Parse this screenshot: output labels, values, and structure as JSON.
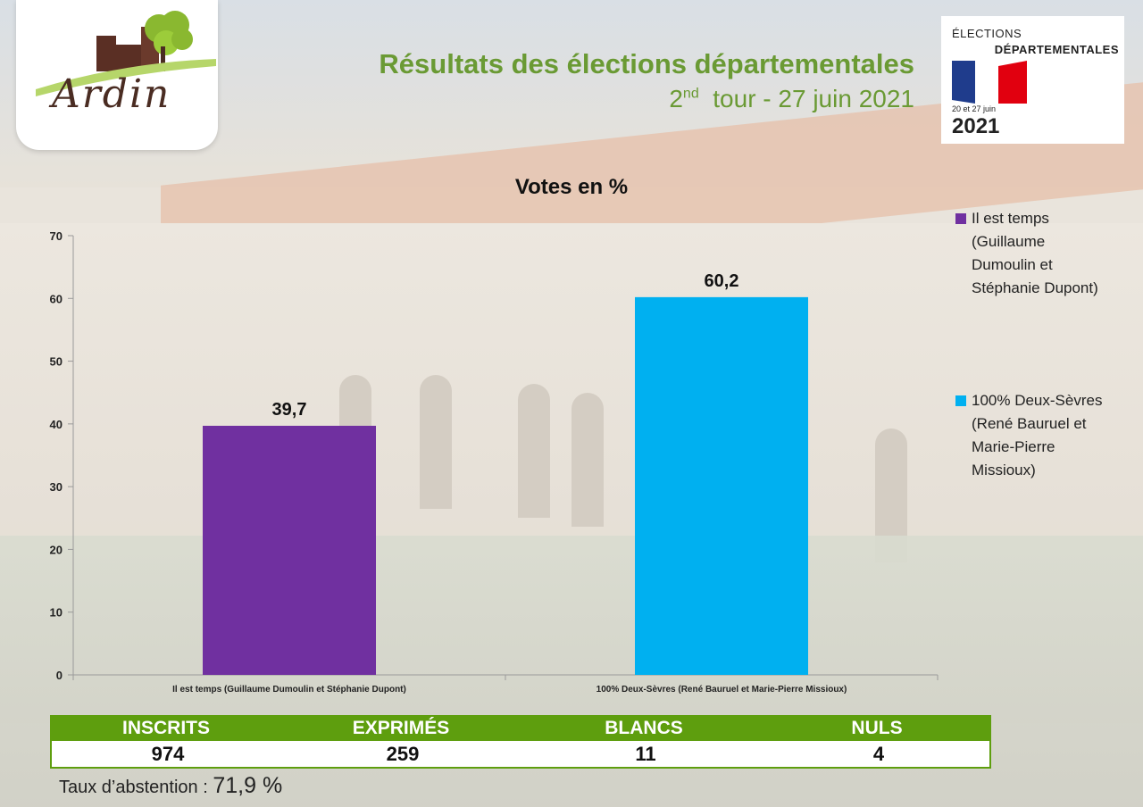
{
  "header": {
    "logo_text": "Ardin",
    "title": "Résultats des élections départementales",
    "subtitle_ordinal": "2",
    "subtitle_sup": "nd",
    "subtitle_rest": "tour - 27 juin 2021"
  },
  "badge": {
    "line1": "ÉLECTIONS",
    "line2": "DÉPARTEMENTALES",
    "dates": "20 et 27 juin",
    "year": "2021",
    "flag_colors": [
      "#1f3c8c",
      "#ffffff",
      "#e1000f"
    ]
  },
  "chart_data": {
    "type": "bar",
    "title": "Votes en %",
    "categories": [
      "Il est temps (Guillaume Dumoulin et Stéphanie Dupont)",
      "100% Deux-Sèvres (René Bauruel et Marie-Pierre Missioux)"
    ],
    "values": [
      39.7,
      60.2
    ],
    "value_labels": [
      "39,7",
      "60,2"
    ],
    "colors": [
      "#7030a0",
      "#00b0f0"
    ],
    "ylim": [
      0,
      70
    ],
    "yticks": [
      0,
      10,
      20,
      30,
      40,
      50,
      60,
      70
    ],
    "grid": false,
    "legend_position": "right",
    "legend": [
      {
        "lines": [
          "Il est temps",
          "(Guillaume",
          "Dumoulin et",
          "Stéphanie Dupont)"
        ],
        "color": "#7030a0"
      },
      {
        "lines": [
          "100% Deux-Sèvres",
          "(René Bauruel et",
          "Marie-Pierre",
          "Missioux)"
        ],
        "color": "#00b0f0"
      }
    ]
  },
  "stats": {
    "headers": [
      "INSCRITS",
      "EXPRIMÉS",
      "BLANCS",
      "NULS"
    ],
    "values": [
      "974",
      "259",
      "11",
      "4"
    ],
    "accent": "#5e9e0e"
  },
  "abstention": {
    "label": "Taux d’abstention :",
    "value": "71,9 %"
  }
}
